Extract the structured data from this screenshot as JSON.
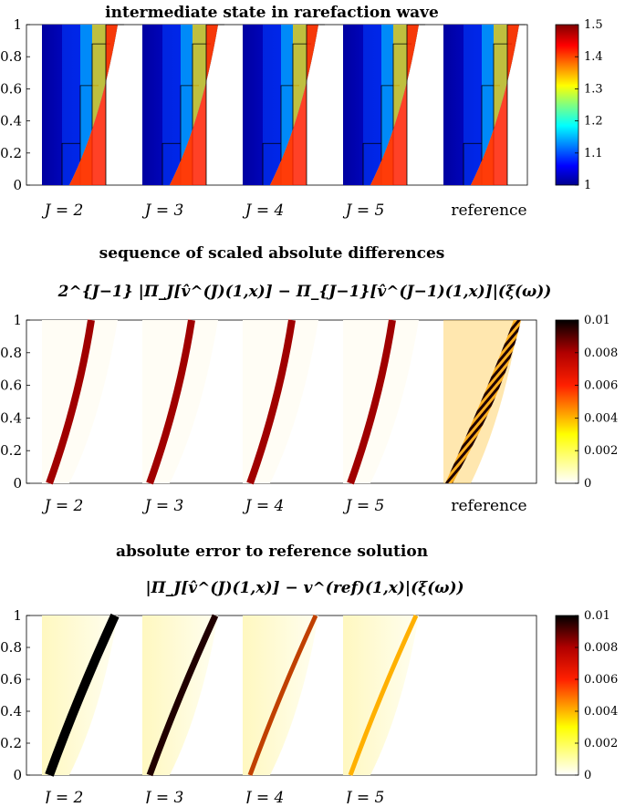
{
  "chart_data": [
    {
      "type": "heatmap",
      "title": "intermediate state in rarefaction wave",
      "panels": [
        "J = 2",
        "J = 3",
        "J = 4",
        "J = 5",
        "reference"
      ],
      "ylim": [
        0,
        1
      ],
      "yticks": [
        "0",
        "0.2",
        "0.4",
        "0.6",
        "0.8",
        "1"
      ],
      "colormap": "jet",
      "colorbar": {
        "min": 1,
        "max": 1.5,
        "ticks": [
          "1.5",
          "1.4",
          "1.3",
          "1.2",
          "1.1",
          "1"
        ]
      }
    },
    {
      "type": "heatmap",
      "title": "sequence of scaled absolute differences",
      "formula": "2^{J−1} |Π_J[v̂^(J)(1,x)] − Π_{J−1}[v̂^(J−1)(1,x)]|(ξ(ω))",
      "panels": [
        "J = 2",
        "J = 3",
        "J = 4",
        "J = 5",
        "reference"
      ],
      "ylim": [
        0,
        1
      ],
      "yticks": [
        "0",
        "0.2",
        "0.4",
        "0.6",
        "0.8",
        "1"
      ],
      "colormap": "hot",
      "colorbar": {
        "min": 0,
        "max": 0.01,
        "ticks": [
          "0.01",
          "0.008",
          "0.006",
          "0.004",
          "0.002",
          "0"
        ]
      }
    },
    {
      "type": "heatmap",
      "title": "absolute error to reference solution",
      "formula": "|Π_J[v̂^(J)(1,x)] − v^(ref)(1,x)|(ξ(ω))",
      "panels": [
        "J = 2",
        "J = 3",
        "J = 4",
        "J = 5"
      ],
      "ylim": [
        0,
        1
      ],
      "yticks": [
        "0",
        "0.2",
        "0.4",
        "0.6",
        "0.8",
        "1"
      ],
      "colormap": "hot",
      "colorbar": {
        "min": 0,
        "max": 0.01,
        "ticks": [
          "0.01",
          "0.008",
          "0.006",
          "0.004",
          "0.002",
          "0"
        ]
      }
    }
  ]
}
